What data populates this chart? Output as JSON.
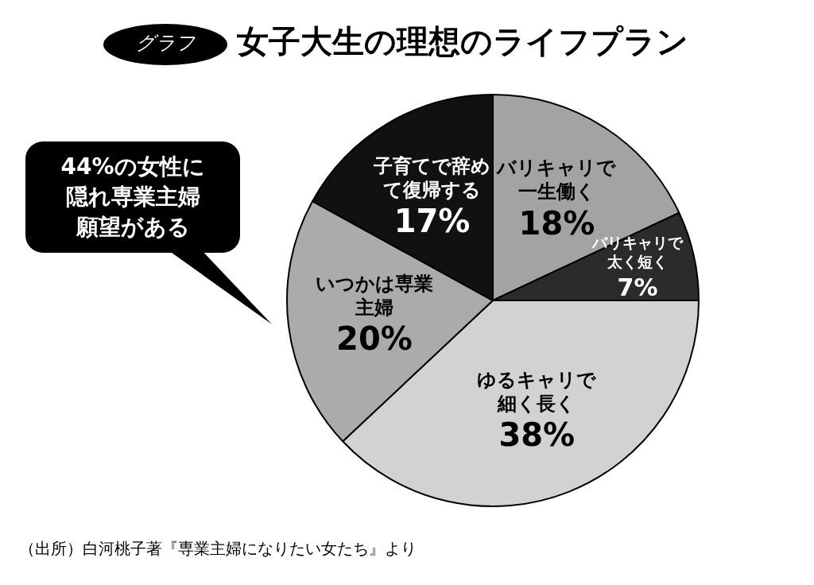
{
  "chart_data": {
    "type": "pie",
    "title": "女子大生の理想のライフプラン",
    "categories": [
      "バリキャリで一生働く",
      "バリキャリで太く短く",
      "ゆるキャリで細く長く",
      "いつかは専業主婦",
      "子育てで辞めて復帰する"
    ],
    "values": [
      18,
      7,
      38,
      20,
      17
    ],
    "value_labels": [
      "18%",
      "7%",
      "38%",
      "20%",
      "17%"
    ],
    "colors": [
      "#a3a3a3",
      "#2b2b2b",
      "#d2d2d2",
      "#ababab",
      "#111111"
    ],
    "annotations": [
      "グラフ",
      "44%の女性に隠れ専業主婦願望がある",
      "（出所）白河桃子著『専業主婦になりたい女たち』より"
    ],
    "legend": false
  }
}
